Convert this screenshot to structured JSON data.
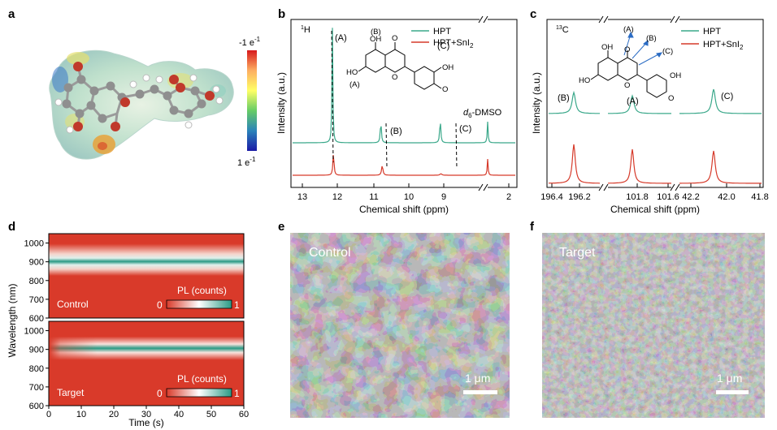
{
  "panel_letters": {
    "a": "a",
    "b": "b",
    "c": "c",
    "d": "d",
    "e": "e",
    "f": "f"
  },
  "panel_a": {
    "colorbar_top": "-1 e",
    "colorbar_top_sup": "-1",
    "colorbar_bottom": "1 e",
    "colorbar_bottom_sup": "-1",
    "colors": [
      "#d7191c",
      "#fdae61",
      "#ffff66",
      "#66cc66",
      "#2b83ba",
      "#1a1aa6"
    ]
  },
  "panel_b": {
    "nucleus_main": "H",
    "nucleus_sup": "1",
    "ylabel": "Intensity (a.u.)",
    "xlabel": "Chemical shift (ppm)",
    "xticks": [
      "13",
      "12",
      "11",
      "10",
      "9",
      "2"
    ],
    "legend": [
      "HPT",
      "HPT+SnI",
      "2"
    ],
    "peak_labels": [
      "(A)",
      "(B)",
      "(C)"
    ],
    "solvent_main": "-DMSO",
    "solvent_d": "d",
    "solvent_sub": "6",
    "molecule_labels": {
      "B": "(B)",
      "A": "(A)",
      "C": "(C)",
      "OH1": "OH",
      "OH2": "HO",
      "OH3": "OH",
      "O1": "O",
      "O2": "O",
      "O3": "O",
      "HO": "HO"
    }
  },
  "panel_c": {
    "nucleus_main": "C",
    "nucleus_sup": "13",
    "ylabel": "Intensity (a.u.)",
    "xlabel": "Chemical shift (ppm)",
    "xticks": [
      "196.4",
      "196.2",
      "101.8",
      "101.6",
      "42.2",
      "42.0",
      "41.8"
    ],
    "legend": [
      "HPT",
      "HPT+SnI",
      "2"
    ],
    "peak_labels": [
      "(B)",
      "(A)",
      "(C)"
    ],
    "molecule_labels": {
      "A": "(A)",
      "B": "(B)",
      "C": "(C)",
      "OH1": "OH",
      "OH2": "OH",
      "O1": "O",
      "O2": "O",
      "O3": "O",
      "HO": "HO"
    }
  },
  "panel_d": {
    "ylabel": "Wavelength (nm)",
    "xlabel": "Time (s)",
    "yticks": [
      "1000",
      "900",
      "800",
      "700",
      "600"
    ],
    "xticks": [
      "0",
      "10",
      "20",
      "30",
      "40",
      "50",
      "60"
    ],
    "top_label": "Control",
    "bottom_label": "Target",
    "colorbar_title": "PL (counts)",
    "colorbar_min": "0",
    "colorbar_max": "1",
    "heat_colors": {
      "low": "#d93a2a",
      "mid": "#ffffff",
      "high": "#2a9a85"
    }
  },
  "panel_e": {
    "label": "Control",
    "scale": "1 μm"
  },
  "panel_f": {
    "label": "Target",
    "scale": "1 μm"
  },
  "chart_data": [
    {
      "type": "line",
      "title": "",
      "xlabel": "Chemical shift (ppm)",
      "ylabel": "Intensity (a.u.)",
      "xlim": [
        13,
        2
      ],
      "series": [
        {
          "name": "HPT",
          "peaks_ppm": [
            12.15,
            10.78,
            9.1,
            2.5
          ]
        },
        {
          "name": "HPT+SnI2",
          "peaks_ppm": [
            12.12,
            10.74,
            9.08,
            2.5
          ]
        }
      ]
    },
    {
      "type": "line",
      "title": "",
      "xlabel": "Chemical shift (ppm)",
      "ylabel": "Intensity (a.u.)",
      "series": [
        {
          "name": "HPT",
          "peaks_ppm": [
            196.21,
            101.78,
            42.08
          ]
        },
        {
          "name": "HPT+SnI2",
          "peaks_ppm": [
            196.19,
            101.76,
            42.06
          ]
        }
      ]
    },
    {
      "type": "heatmap",
      "title": "",
      "xlabel": "Time (s)",
      "ylabel": "Wavelength (nm)",
      "xlim": [
        0,
        60
      ],
      "ylim": [
        600,
        1050
      ],
      "series": [
        {
          "name": "Control",
          "peak_wavelength_nm": [
            925,
            925
          ]
        },
        {
          "name": "Target",
          "peak_wavelength_nm": [
            920,
            920
          ]
        }
      ]
    }
  ]
}
